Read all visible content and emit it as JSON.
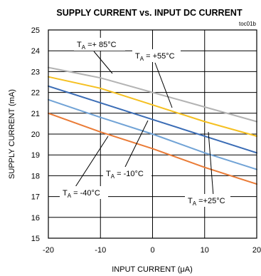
{
  "chart_data": {
    "type": "line",
    "title": "SUPPLY CURRENT vs. INPUT DC CURRENT",
    "tag": "toc01b",
    "xlabel": "INPUT CURRENT (μA)",
    "ylabel": "SUPPLY CURRENT (mA)",
    "xlim": [
      -20,
      20
    ],
    "ylim": [
      15,
      25
    ],
    "xticks": [
      -20,
      -10,
      0,
      10,
      20
    ],
    "yticks": [
      15,
      16,
      17,
      18,
      19,
      20,
      21,
      22,
      23,
      24,
      25
    ],
    "grid": true,
    "series": [
      {
        "temperature": "+85°C",
        "color": "#b3b3b3",
        "x": [
          -20,
          -10,
          0,
          10,
          20
        ],
        "y": [
          23.2,
          22.7,
          22.0,
          21.3,
          20.6
        ]
      },
      {
        "temperature": "+55°C",
        "color": "#f5c021",
        "x": [
          -20,
          -10,
          0,
          10,
          20
        ],
        "y": [
          22.75,
          22.2,
          21.4,
          20.6,
          19.9
        ]
      },
      {
        "temperature": "+25°C",
        "color": "#3a6cb5",
        "x": [
          -20,
          -10,
          0,
          10,
          20
        ],
        "y": [
          22.3,
          21.5,
          20.7,
          19.9,
          19.1
        ]
      },
      {
        "temperature": "-10°C",
        "color": "#71a3d6",
        "x": [
          -20,
          -10,
          0,
          10,
          20
        ],
        "y": [
          21.65,
          20.8,
          20.0,
          19.1,
          18.3
        ]
      },
      {
        "temperature": "-40°C",
        "color": "#ea7b36",
        "x": [
          -20,
          -10,
          0,
          10,
          20
        ],
        "y": [
          21.0,
          20.1,
          19.3,
          18.4,
          17.6
        ]
      }
    ],
    "annotations": [
      {
        "main": "T",
        "sub": "A",
        "rest": " =+ 85°C"
      },
      {
        "main": "T",
        "sub": "A",
        "rest": " = +55°C"
      },
      {
        "main": "T",
        "sub": "A",
        "rest": " = -10°C"
      },
      {
        "main": "T",
        "sub": "A",
        "rest": " = -40°C"
      },
      {
        "main": "T",
        "sub": "A",
        "rest": " =+25°C"
      }
    ]
  }
}
